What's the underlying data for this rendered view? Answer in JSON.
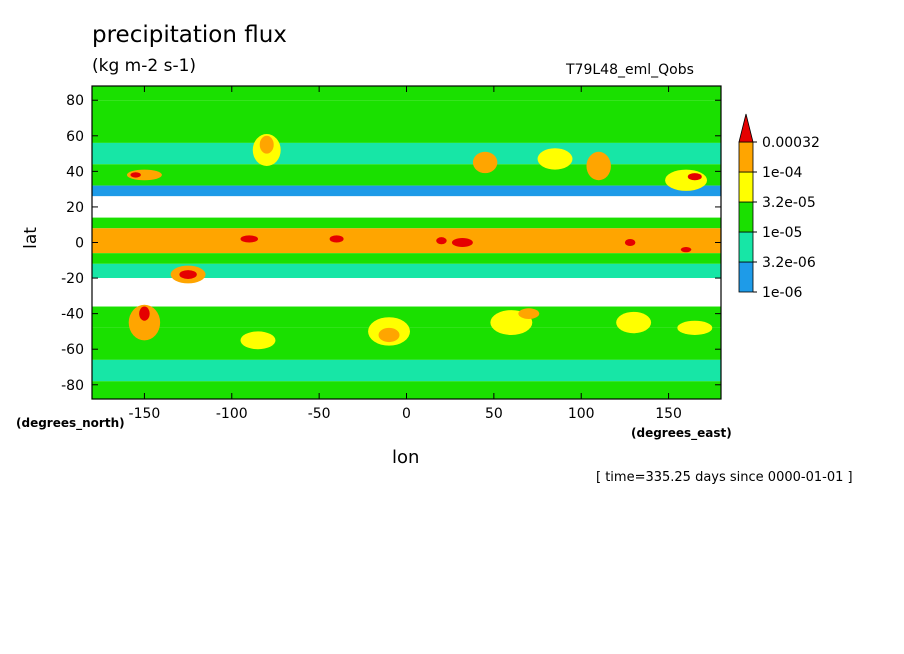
{
  "header": {
    "title": "precipitation flux",
    "units": "(kg m-2 s-1)",
    "run_name": "T79L48_eml_Qobs",
    "timestamp": "[ time=335.25 days since 0000-01-01 ]"
  },
  "chart_data": {
    "type": "heatmap",
    "title": "precipitation flux",
    "subtitle": "(kg m-2 s-1)",
    "xlabel": "lon",
    "ylabel": "lat",
    "x_units": "(degrees_east)",
    "y_units": "(degrees_north)",
    "xlim": [
      -180,
      180
    ],
    "ylim": [
      -88,
      88
    ],
    "x_ticks": [
      -150,
      -100,
      -50,
      0,
      50,
      100,
      150
    ],
    "x_tick_labels": [
      "-150",
      "-100",
      "-50",
      "0",
      "50",
      "100",
      "150"
    ],
    "y_ticks": [
      80,
      60,
      40,
      20,
      0,
      -20,
      -40,
      -60,
      -80
    ],
    "y_tick_labels": [
      "80",
      "60",
      "40",
      "20",
      "0",
      "-20",
      "-40",
      "-60",
      "-80"
    ],
    "colorbar": {
      "levels": [
        "1e-06",
        "3.2e-06",
        "1e-05",
        "3.2e-05",
        "1e-04",
        "0.00032"
      ],
      "colors": [
        "#ffffff",
        "#1e9be8",
        "#17e6a6",
        "#1ae000",
        "#ffff00",
        "#ffa500",
        "#e50000"
      ],
      "extend": "max"
    },
    "bands": [
      {
        "lat_from": 88,
        "lat_to": 80,
        "level": 3
      },
      {
        "lat_from": 80,
        "lat_to": 56,
        "level": 3
      },
      {
        "lat_from": 56,
        "lat_to": 44,
        "level": 2
      },
      {
        "lat_from": 44,
        "lat_to": 32,
        "level": 3
      },
      {
        "lat_from": 32,
        "lat_to": 26,
        "level": 1
      },
      {
        "lat_from": 26,
        "lat_to": 14,
        "level": 0
      },
      {
        "lat_from": 14,
        "lat_to": 8,
        "level": 3
      },
      {
        "lat_from": 8,
        "lat_to": -6,
        "level": 5
      },
      {
        "lat_from": -6,
        "lat_to": -12,
        "level": 3
      },
      {
        "lat_from": -12,
        "lat_to": -20,
        "level": 2
      },
      {
        "lat_from": -20,
        "lat_to": -36,
        "level": 0
      },
      {
        "lat_from": -36,
        "lat_to": -48,
        "level": 3
      },
      {
        "lat_from": -48,
        "lat_to": -66,
        "level": 3
      },
      {
        "lat_from": -66,
        "lat_to": -78,
        "level": 2
      },
      {
        "lat_from": -78,
        "lat_to": -88,
        "level": 3
      }
    ],
    "features": [
      {
        "lon": -150,
        "lat": 38,
        "rlon": 10,
        "rlat": 3,
        "level": 5
      },
      {
        "lon": -155,
        "lat": 38,
        "rlon": 3,
        "rlat": 1.5,
        "level": 6
      },
      {
        "lon": -80,
        "lat": 52,
        "rlon": 8,
        "rlat": 9,
        "level": 4
      },
      {
        "lon": -80,
        "lat": 55,
        "rlon": 4,
        "rlat": 5,
        "level": 5
      },
      {
        "lon": 45,
        "lat": 45,
        "rlon": 7,
        "rlat": 6,
        "level": 5
      },
      {
        "lon": 85,
        "lat": 47,
        "rlon": 10,
        "rlat": 6,
        "level": 4
      },
      {
        "lon": 110,
        "lat": 43,
        "rlon": 7,
        "rlat": 8,
        "level": 5
      },
      {
        "lon": 160,
        "lat": 35,
        "rlon": 12,
        "rlat": 6,
        "level": 4
      },
      {
        "lon": 165,
        "lat": 37,
        "rlon": 4,
        "rlat": 2,
        "level": 6
      },
      {
        "lon": -90,
        "lat": 2,
        "rlon": 5,
        "rlat": 2,
        "level": 6
      },
      {
        "lon": -40,
        "lat": 2,
        "rlon": 4,
        "rlat": 2,
        "level": 6
      },
      {
        "lon": 20,
        "lat": 1,
        "rlon": 3,
        "rlat": 2,
        "level": 6
      },
      {
        "lon": 32,
        "lat": 0,
        "rlon": 6,
        "rlat": 2.5,
        "level": 6
      },
      {
        "lon": 128,
        "lat": 0,
        "rlon": 3,
        "rlat": 2,
        "level": 6
      },
      {
        "lon": 160,
        "lat": -4,
        "rlon": 3,
        "rlat": 1.5,
        "level": 6
      },
      {
        "lon": -125,
        "lat": -18,
        "rlon": 10,
        "rlat": 5,
        "level": 5
      },
      {
        "lon": -125,
        "lat": -18,
        "rlon": 5,
        "rlat": 2.5,
        "level": 6
      },
      {
        "lon": -150,
        "lat": -45,
        "rlon": 9,
        "rlat": 10,
        "level": 5
      },
      {
        "lon": -150,
        "lat": -40,
        "rlon": 3,
        "rlat": 4,
        "level": 6
      },
      {
        "lon": -10,
        "lat": -50,
        "rlon": 12,
        "rlat": 8,
        "level": 4
      },
      {
        "lon": -10,
        "lat": -52,
        "rlon": 6,
        "rlat": 4,
        "level": 5
      },
      {
        "lon": 60,
        "lat": -45,
        "rlon": 12,
        "rlat": 7,
        "level": 4
      },
      {
        "lon": 70,
        "lat": -40,
        "rlon": 6,
        "rlat": 3,
        "level": 5
      },
      {
        "lon": -85,
        "lat": -55,
        "rlon": 10,
        "rlat": 5,
        "level": 4
      },
      {
        "lon": 130,
        "lat": -45,
        "rlon": 10,
        "rlat": 6,
        "level": 4
      },
      {
        "lon": 165,
        "lat": -48,
        "rlon": 10,
        "rlat": 4,
        "level": 4
      }
    ]
  }
}
